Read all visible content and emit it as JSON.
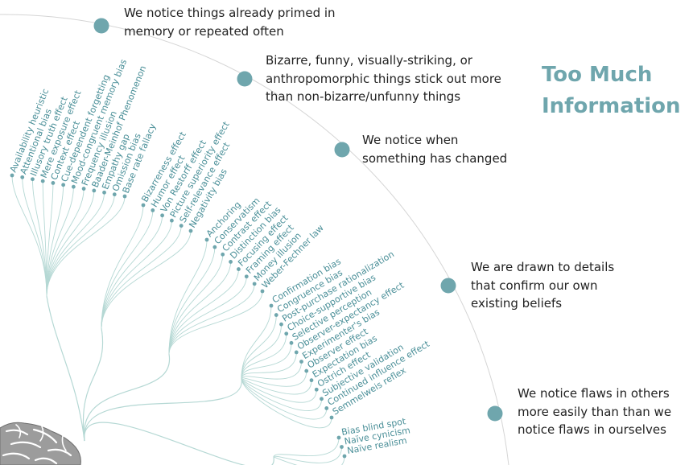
{
  "title": [
    "Too Much",
    "Information"
  ],
  "colors": {
    "accent": "#6fa6ad",
    "leaf_text": "#4a8f98",
    "branch": "#b5d8d4",
    "arc": "#d5d5d5",
    "brain": "#9a9a9a"
  },
  "icons": {
    "brain": "brain-icon"
  },
  "categories": [
    {
      "id": "primed",
      "lines": [
        "We notice things already primed in",
        "memory or repeated often"
      ],
      "items": [
        "Availability heuristic",
        "Attentional bias",
        "Illusory truth effect",
        "Mere exposure effect",
        "Context effect",
        "Cue-dependent forgetting",
        "Mood-congruent memory bias",
        "Frequency illusion",
        "Baader-Meinhof Phenomenon",
        "Empathy gap",
        "Omission bias",
        "Base rate fallacy"
      ]
    },
    {
      "id": "bizarre",
      "lines": [
        "Bizarre, funny, visually-striking, or",
        "anthropomorphic things stick out more",
        "than non-bizarre/unfunny things"
      ],
      "items": [
        "Bizarreness effect",
        "Humor effect",
        "Von Restorff effect",
        "Picture superiority effect",
        "Self-relevance effect",
        "Negativity bias"
      ]
    },
    {
      "id": "changed",
      "lines": [
        "We notice when",
        "something has changed"
      ],
      "items": [
        "Anchoring",
        "Conservatism",
        "Contrast effect",
        "Distinction bias",
        "Focusing effect",
        "Framing effect",
        "Money illusion",
        "Weber-Fechner law"
      ]
    },
    {
      "id": "beliefs",
      "lines": [
        "We are drawn to details",
        "that confirm our own",
        "existing beliefs"
      ],
      "items": [
        "Confirmation bias",
        "Congruence bias",
        "Post-purchase rationalization",
        "Choice-supportive bias",
        "Selective perception",
        "Observer-expectancy effect",
        "Experimenter's bias",
        "Observer effect",
        "Expectation bias",
        "Ostrich effect",
        "Subjective validation",
        "Continued influence effect",
        "Semmelweis reflex"
      ]
    },
    {
      "id": "flaws",
      "lines": [
        "We notice flaws in others",
        "more easily than than we",
        "notice flaws in ourselves"
      ],
      "items": [
        "Bias blind spot",
        "Naïve cynicism",
        "Naïve realism"
      ]
    }
  ]
}
